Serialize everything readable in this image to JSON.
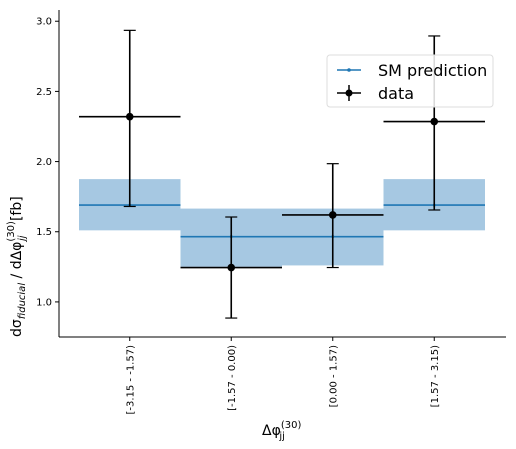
{
  "chart_data": {
    "type": "bar",
    "xlabel_base": "Δφ",
    "xlabel_sub": "jj",
    "xlabel_sup": "(30)",
    "ylabel": "dσ_fiducial / dΔφ_jj^(30) [fb]",
    "ylabel_parts": {
      "prefix": "dσ",
      "sub1": "fiducial",
      "middle": " / dΔφ",
      "sub2": "jj",
      "sup2": "(30)",
      "suffix": " [fb]"
    },
    "categories": [
      "[-3.15 - -1.57)",
      "[-1.57 - 0.00)",
      "[0.00 - 1.57)",
      "[1.57 - 3.15)"
    ],
    "yticks": [
      "1.0",
      "1.5",
      "2.0",
      "2.5",
      "3.0"
    ],
    "ylim": [
      0.75,
      3.08
    ],
    "legend_position": "upper right",
    "series": [
      {
        "name": "SM prediction",
        "values": [
          1.69,
          1.465,
          1.465,
          1.69
        ],
        "band_low": [
          1.51,
          1.25,
          1.26,
          1.51
        ],
        "band_high": [
          1.875,
          1.665,
          1.665,
          1.875
        ],
        "color": "#1f77b4",
        "band_color": "#a6c8e2"
      },
      {
        "name": "data",
        "values": [
          2.32,
          1.245,
          1.62,
          2.285
        ],
        "err_low": [
          1.68,
          0.885,
          1.245,
          1.655
        ],
        "err_high": [
          2.935,
          1.605,
          1.985,
          2.895
        ],
        "color": "#000000"
      }
    ]
  }
}
